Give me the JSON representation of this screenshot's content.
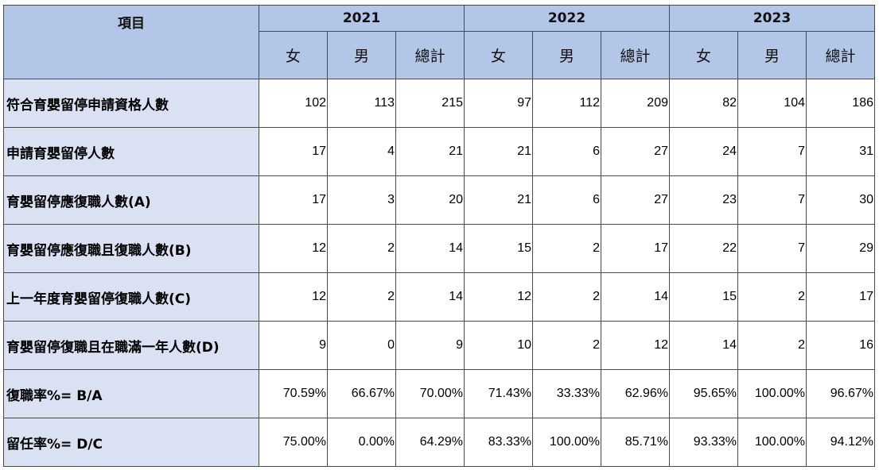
{
  "header": {
    "item_label": "項目",
    "years": [
      "2021",
      "2022",
      "2023"
    ],
    "sub_labels": [
      "女",
      "男",
      "總計"
    ]
  },
  "rows": [
    {
      "label": "符合育嬰留停申請資格人數",
      "values": [
        "102",
        "113",
        "215",
        "97",
        "112",
        "209",
        "82",
        "104",
        "186"
      ]
    },
    {
      "label": "申請育嬰留停人數",
      "values": [
        "17",
        "4",
        "21",
        "21",
        "6",
        "27",
        "24",
        "7",
        "31"
      ]
    },
    {
      "label": "育嬰留停應復職人數(A)",
      "values": [
        "17",
        "3",
        "20",
        "21",
        "6",
        "27",
        "23",
        "7",
        "30"
      ]
    },
    {
      "label": "育嬰留停應復職且復職人數(B)",
      "values": [
        "12",
        "2",
        "14",
        "15",
        "2",
        "17",
        "22",
        "7",
        "29"
      ]
    },
    {
      "label": "上一年度育嬰留停復職人數(C)",
      "values": [
        "12",
        "2",
        "14",
        "12",
        "2",
        "14",
        "15",
        "2",
        "17"
      ]
    },
    {
      "label": "育嬰留停復職且在職滿一年人數(D)",
      "values": [
        "9",
        "0",
        "9",
        "10",
        "2",
        "12",
        "14",
        "2",
        "16"
      ]
    },
    {
      "label": "復職率%= B/A",
      "values": [
        "70.59%",
        "66.67%",
        "70.00%",
        "71.43%",
        "33.33%",
        "62.96%",
        "95.65%",
        "100.00%",
        "96.67%"
      ]
    },
    {
      "label": "留任率%= D/C",
      "values": [
        "75.00%",
        "0.00%",
        "64.29%",
        "83.33%",
        "100.00%",
        "85.71%",
        "93.33%",
        "100.00%",
        "94.12%"
      ]
    }
  ]
}
